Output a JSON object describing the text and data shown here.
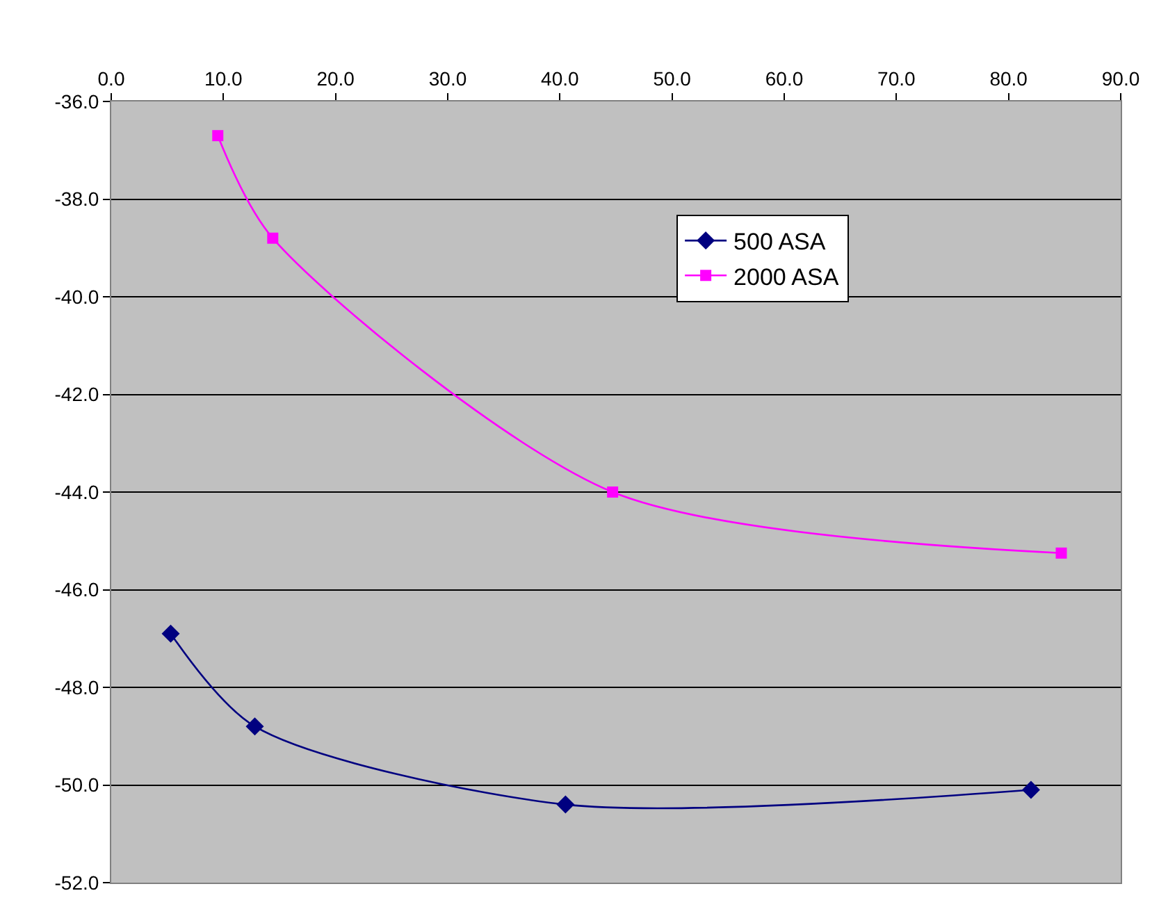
{
  "chart_data": {
    "type": "line",
    "series": [
      {
        "name": "500 ASA",
        "color": "#000080",
        "marker": "diamond",
        "x": [
          5.3,
          12.8,
          40.5,
          82.0
        ],
        "values": [
          -46.9,
          -48.8,
          -50.4,
          -50.1
        ]
      },
      {
        "name": "2000 ASA",
        "color": "#ff00ff",
        "marker": "square",
        "x": [
          9.5,
          14.4,
          44.7,
          84.7
        ],
        "values": [
          -36.7,
          -38.8,
          -44.0,
          -45.25
        ]
      }
    ],
    "xlim": [
      0,
      90
    ],
    "xticks": [
      {
        "value": 0,
        "label": "0.0"
      },
      {
        "value": 10,
        "label": "10.0"
      },
      {
        "value": 20,
        "label": "20.0"
      },
      {
        "value": 30,
        "label": "30.0"
      },
      {
        "value": 40,
        "label": "40.0"
      },
      {
        "value": 50,
        "label": "50.0"
      },
      {
        "value": 60,
        "label": "60.0"
      },
      {
        "value": 70,
        "label": "70.0"
      },
      {
        "value": 80,
        "label": "80.0"
      },
      {
        "value": 90,
        "label": "90.0"
      }
    ],
    "ylim": [
      -52,
      -36
    ],
    "yticks": [
      {
        "value": -52,
        "label": "-52.0"
      },
      {
        "value": -50,
        "label": "-50.0"
      },
      {
        "value": -48,
        "label": "-48.0"
      },
      {
        "value": -46,
        "label": "-46.0"
      },
      {
        "value": -44,
        "label": "-44.0"
      },
      {
        "value": -42,
        "label": "-42.0"
      },
      {
        "value": -40,
        "label": "-40.0"
      },
      {
        "value": -38,
        "label": "-38.0"
      },
      {
        "value": -36,
        "label": "-36.0"
      }
    ],
    "grid": "y",
    "legend": "top right",
    "line_style": "solid"
  }
}
